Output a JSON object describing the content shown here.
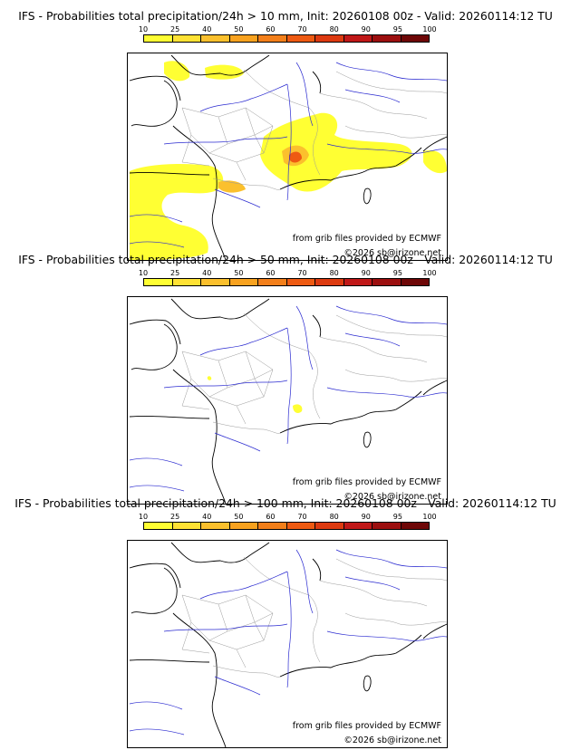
{
  "colorbar": {
    "ticks": [
      "10",
      "25",
      "40",
      "50",
      "60",
      "70",
      "80",
      "90",
      "95",
      "100"
    ],
    "colors": [
      "#ffff33",
      "#ffe234",
      "#fbc02d",
      "#f8a21f",
      "#f37f1a",
      "#ee5a12",
      "#dd3a10",
      "#c01818",
      "#9c0f0f",
      "#6e0707"
    ]
  },
  "panels": [
    {
      "title": "IFS - Probabilities total precipitation/24h > 10 mm, Init: 20260108 00z - Valid: 20260114:12 TU",
      "source": "from grib files provided by ECMWF",
      "copyright": "©2026 sb@irizone.net"
    },
    {
      "title": "IFS - Probabilities total precipitation/24h > 50 mm, Init: 20260108 00z - Valid: 20260114:12 TU",
      "source": "from grib files provided by ECMWF",
      "copyright": "©2026 sb@irizone.net"
    },
    {
      "title": "IFS - Probabilities total precipitation/24h > 100 mm, Init: 20260108 00z - Valid: 20260114:12 TU",
      "source": "from grib files provided by ECMWF",
      "copyright": "©2026 sb@irizone.net"
    }
  ],
  "map": {
    "coast_color": "#000000",
    "river_color": "#2a2ad0",
    "border_color": "#9a9a9a",
    "precip_low": "#ffff33",
    "precip_mid": "#fbc02d",
    "precip_high": "#ee5a12"
  }
}
